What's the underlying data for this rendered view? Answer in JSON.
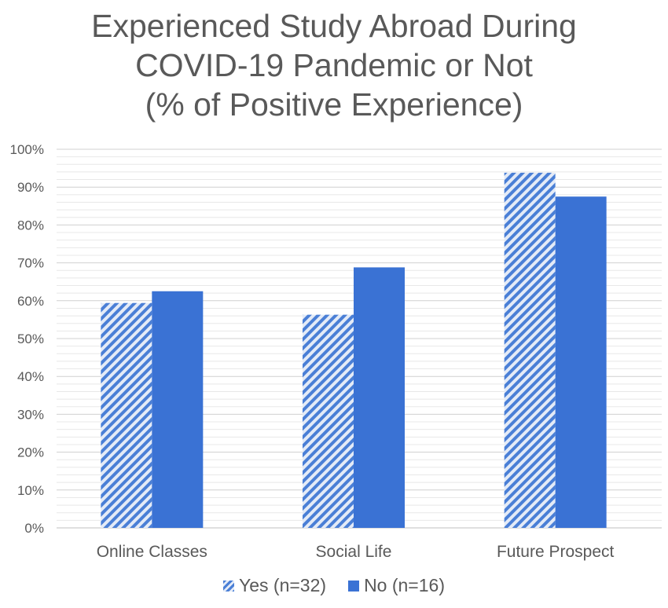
{
  "chart_data": {
    "type": "bar",
    "title_lines": [
      "Experienced Study Abroad During",
      "COVID-19 Pandemic or Not",
      "(% of Positive Experience)"
    ],
    "categories": [
      "Online Classes",
      "Social Life",
      "Future Prospect"
    ],
    "series": [
      {
        "name": "Yes (n=32)",
        "values": [
          59.4,
          56.3,
          93.8
        ],
        "color": "#4a7fd6",
        "pattern": "diagonal-stripes"
      },
      {
        "name": "No (n=16)",
        "values": [
          62.5,
          68.8,
          87.5
        ],
        "color": "#3a72d4",
        "pattern": "solid"
      }
    ],
    "ylim": [
      0,
      100
    ],
    "y_ticks": [
      "0%",
      "10%",
      "20%",
      "30%",
      "40%",
      "50%",
      "60%",
      "70%",
      "80%",
      "90%",
      "100%"
    ],
    "y_tick_values": [
      0,
      10,
      20,
      30,
      40,
      50,
      60,
      70,
      80,
      90,
      100
    ],
    "grid": true,
    "minor_grid_step": 2,
    "legend_position": "bottom"
  }
}
